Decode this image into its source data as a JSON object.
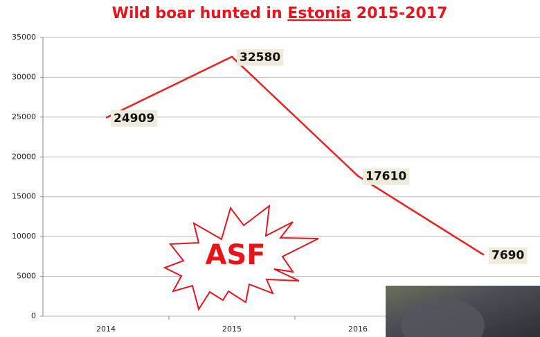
{
  "chart_data": {
    "type": "line",
    "title": [
      "Wild boar hunted in",
      "Estonia",
      "2015-2017"
    ],
    "categories": [
      "2014",
      "2015",
      "2016",
      null
    ],
    "series": [
      {
        "name": null,
        "color": "#f01d1d",
        "values": [
          24909,
          32580,
          17610,
          7690
        ]
      }
    ],
    "ylim": [
      0,
      35000
    ],
    "yticks": [
      0,
      5000,
      10000,
      15000,
      20000,
      25000,
      30000,
      35000
    ],
    "grid": true,
    "annotations": [
      "ASF"
    ]
  }
}
